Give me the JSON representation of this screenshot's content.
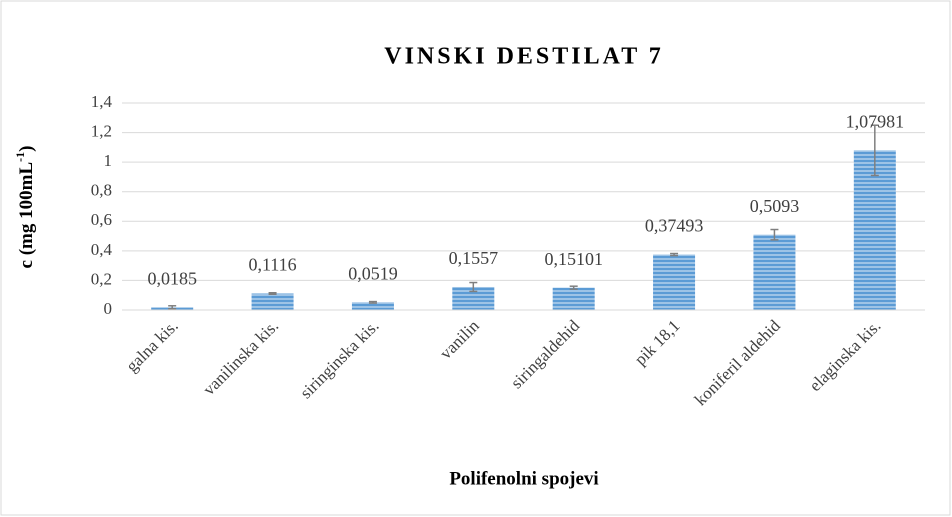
{
  "chart_data": {
    "type": "bar",
    "title": "VINSKI DESTILAT 7",
    "x_label": "Polifenolni spojevi",
    "y_label": [
      "c (mg 100mL",
      "-1",
      ")"
    ],
    "categories": [
      "galna kis.",
      "vanilinska kis.",
      "siringinska kis.",
      "vanilin",
      "siringaldehid",
      "pik 18,1",
      "koniferil aldehid",
      "elaginska kis."
    ],
    "values": [
      0.0185,
      0.1116,
      0.0519,
      0.1557,
      0.15101,
      0.37493,
      0.5093,
      1.07981
    ],
    "value_labels": [
      "0,0185",
      "0,1116",
      "0,0519",
      "0,1557",
      "0,15101",
      "0,37493",
      "0,5093",
      "1,07981"
    ],
    "errors": [
      0.01,
      0.005,
      0.005,
      0.03,
      0.01,
      0.007,
      0.035,
      0.17
    ],
    "color": "#5b9bd5",
    "ylim": [
      0,
      1.4
    ],
    "yticks": [
      0,
      {
        "value": 0.2,
        "label": "0,2"
      },
      {
        "value": 0.4,
        "label": "0,4"
      },
      {
        "value": 0.6,
        "label": "0,6"
      },
      {
        "value": 0.8,
        "label": "0,8"
      },
      1,
      {
        "value": 1.2,
        "label": "1,2"
      },
      {
        "value": 1.4,
        "label": "1,4"
      }
    ],
    "grid": true
  }
}
